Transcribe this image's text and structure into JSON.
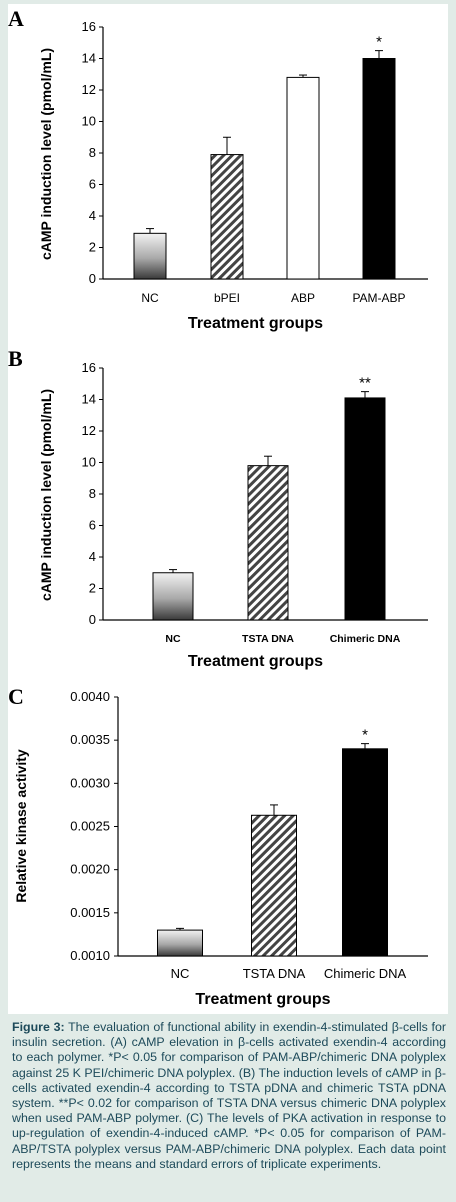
{
  "chart_data": [
    {
      "panel": "A",
      "type": "bar",
      "categories": [
        "NC",
        "bPEI",
        "ABP",
        "PAM-ABP"
      ],
      "values": [
        2.9,
        7.9,
        12.8,
        14.0
      ],
      "errors": [
        0.3,
        1.1,
        0.15,
        0.5
      ],
      "fills": [
        "gradient-gray",
        "hatch",
        "white",
        "black"
      ],
      "significance": [
        "",
        "",
        "",
        "*"
      ],
      "xlabel": "Treatment groups",
      "ylabel": "cAMP induction level (pmol/mL)",
      "ylim": [
        0,
        16
      ],
      "yticks": [
        "0",
        "2",
        "4",
        "6",
        "8",
        "10",
        "12",
        "14",
        "16"
      ],
      "grid": false
    },
    {
      "panel": "B",
      "type": "bar",
      "categories": [
        "NC",
        "TSTA DNA",
        "Chimeric DNA"
      ],
      "values": [
        3.0,
        9.8,
        14.1
      ],
      "errors": [
        0.2,
        0.6,
        0.4
      ],
      "fills": [
        "gradient-gray",
        "hatch",
        "black"
      ],
      "significance": [
        "",
        "",
        "**"
      ],
      "xlabel": "Treatment groups",
      "ylabel": "cAMP induction level (pmol/mL)",
      "ylim": [
        0,
        16
      ],
      "yticks": [
        "0",
        "2",
        "4",
        "6",
        "8",
        "10",
        "12",
        "14",
        "16"
      ],
      "grid": false
    },
    {
      "panel": "C",
      "type": "bar",
      "categories": [
        "NC",
        "TSTA DNA",
        "Chimeric DNA"
      ],
      "values": [
        0.0013,
        0.00263,
        0.0034
      ],
      "errors": [
        2e-05,
        0.00012,
        6e-05
      ],
      "fills": [
        "gradient-gray",
        "hatch",
        "black"
      ],
      "significance": [
        "",
        "",
        "*"
      ],
      "xlabel": "Treatment groups",
      "ylabel": "Relative kinase activity",
      "ylim": [
        0.001,
        0.004
      ],
      "yticks": [
        "0.0010",
        "0.0015",
        "0.0020",
        "0.0025",
        "0.0030",
        "0.0035",
        "0.0040"
      ],
      "grid": false
    }
  ],
  "caption": {
    "lead": "Figure 3:",
    "text": " The evaluation of functional ability in exendin-4-stimulated β-cells for insulin secretion. (A) cAMP elevation in β-cells activated exendin-4 according to each polymer. *P< 0.05 for comparison of PAM-ABP/chimeric DNA polyplex against 25 K PEI/chimeric DNA polyplex. (B) The induction levels of cAMP in β-cells activated exendin-4 according to TSTA pDNA and chimeric TSTA pDNA system. **P< 0.02 for comparison of TSTA DNA versus chimeric DNA polyplex when used PAM-ABP polymer. (C) The levels of PKA activation in response to up-regulation of exendin-4-induced cAMP. *P< 0.05 for comparison of PAM-ABP/TSTA polyplex versus PAM-ABP/chimeric DNA polyplex. Each data point represents the means and standard errors of triplicate experiments."
  }
}
